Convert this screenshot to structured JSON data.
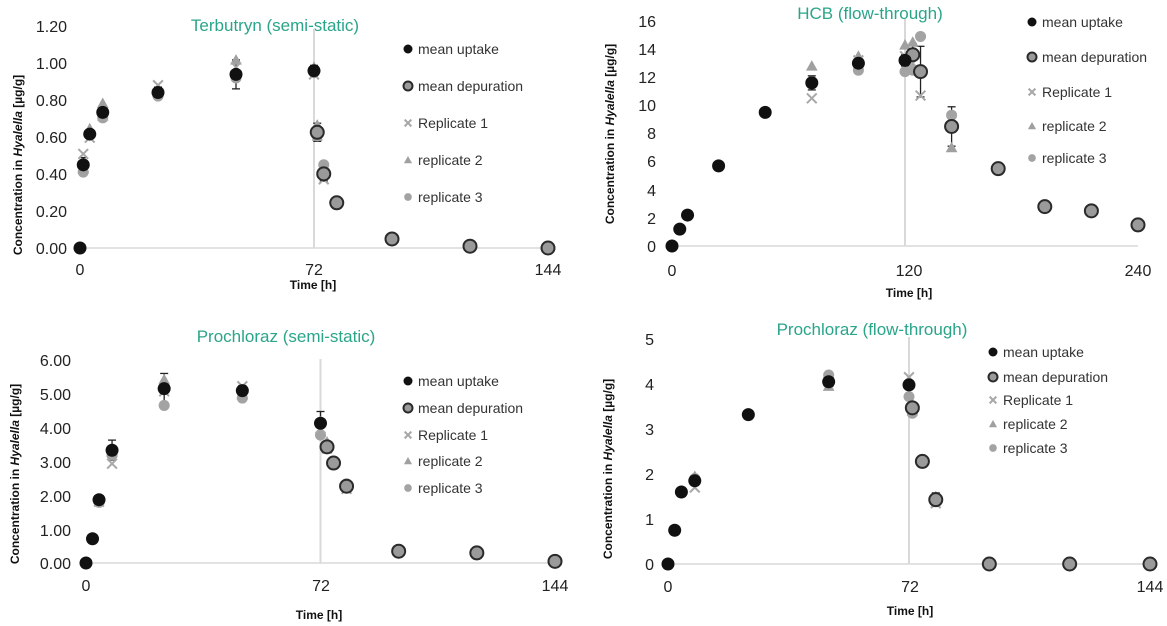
{
  "figure": {
    "panels": [
      {
        "title": "Terbutryn (semi-static)",
        "ylabel_pre": "Concentration in ",
        "ylabel_ital": "Hyalella",
        "ylabel_post": " [µg/g]",
        "xlabel": "Time  [h]",
        "yticks": [
          "0.00",
          "0.20",
          "0.40",
          "0.60",
          "0.80",
          "1.00",
          "1.20"
        ],
        "xticks": [
          "0",
          "72",
          "144"
        ],
        "legend": [
          "mean uptake",
          "mean depuration",
          "Replicate 1",
          "replicate 2",
          "replicate 3"
        ]
      },
      {
        "title": "HCB (flow-through)",
        "ylabel_pre": "Concentration in ",
        "ylabel_ital": "Hyalella",
        "ylabel_post": " [µg/g]",
        "xlabel": "Time  [h]",
        "yticks": [
          "0",
          "2",
          "4",
          "6",
          "8",
          "10",
          "12",
          "14",
          "16"
        ],
        "xticks": [
          "0",
          "120",
          "240"
        ],
        "legend": [
          "mean uptake",
          "mean depuration",
          "Replicate 1",
          "replicate 2",
          "replicate 3"
        ]
      },
      {
        "title": "Prochloraz (semi-static)",
        "ylabel_pre": "Concentration in ",
        "ylabel_ital": "Hyalella",
        "ylabel_post": " [µg/g]",
        "xlabel": "Time  [h]",
        "yticks": [
          "0.00",
          "1.00",
          "2.00",
          "3.00",
          "4.00",
          "5.00",
          "6.00"
        ],
        "xticks": [
          "0",
          "72",
          "144"
        ],
        "legend": [
          "mean uptake",
          "mean depuration",
          "Replicate 1",
          "replicate 2",
          "replicate 3"
        ]
      },
      {
        "title": "Prochloraz (flow-through)",
        "ylabel_pre": "Concentration in ",
        "ylabel_ital": "Hyalella",
        "ylabel_post": " [µg/g]",
        "xlabel": "Time  [h]",
        "yticks": [
          "0",
          "1",
          "2",
          "3",
          "4",
          "5"
        ],
        "xticks": [
          "0",
          "72",
          "144"
        ],
        "legend": [
          "mean uptake",
          "mean depuration",
          "Replicate 1",
          "replicate 2",
          "replicate 3"
        ]
      }
    ]
  },
  "colors": {
    "title": "#2aa58a",
    "uptake": "#111111",
    "depuration_fill": "#9a9a9a",
    "depuration_stroke": "#2a2a2a",
    "replicate_1": "#a8a8a8",
    "replicate_2": "#a0a0a0",
    "replicate_3": "#a3a3a3",
    "gridline": "#d9d9d9"
  },
  "chart_data": [
    {
      "type": "scatter",
      "title": "Terbutryn (semi-static)",
      "xlabel": "Time  [h]",
      "ylabel": "Concentration in Hyalella [µg/g]",
      "xlim": [
        0,
        144
      ],
      "ylim": [
        0,
        1.2
      ],
      "vertical_line_x": 72,
      "series": [
        {
          "name": "mean uptake",
          "x": [
            0,
            1,
            3,
            7,
            24,
            48,
            72
          ],
          "y": [
            0.0,
            0.46,
            0.63,
            0.75,
            0.86,
            0.96,
            0.98
          ],
          "err": [
            0,
            0.04,
            0.02,
            0.03,
            0.03,
            0.08,
            0.03
          ]
        },
        {
          "name": "mean depuration",
          "x": [
            73,
            75,
            79,
            96,
            120,
            144
          ],
          "y": [
            0.64,
            0.41,
            0.25,
            0.05,
            0.01,
            0.0
          ],
          "err": [
            0.05,
            0.04,
            0,
            0,
            0,
            0
          ]
        },
        {
          "name": "Replicate 1",
          "x": [
            1,
            3,
            7,
            24,
            48,
            72,
            73,
            75
          ],
          "y": [
            0.52,
            0.61,
            0.73,
            0.9,
            1.0,
            0.96,
            0.62,
            0.38
          ]
        },
        {
          "name": "replicate 2",
          "x": [
            1,
            3,
            7,
            24,
            48,
            72,
            73,
            75
          ],
          "y": [
            0.44,
            0.66,
            0.8,
            0.86,
            1.04,
            1.0,
            0.68,
            0.45
          ]
        },
        {
          "name": "replicate 3",
          "x": [
            1,
            3,
            7,
            24,
            48,
            72,
            73,
            75
          ],
          "y": [
            0.42,
            0.63,
            0.72,
            0.84,
            0.94,
            0.97,
            0.62,
            0.46
          ]
        }
      ]
    },
    {
      "type": "scatter",
      "title": "HCB (flow-through)",
      "xlabel": "Time  [h]",
      "ylabel": "Concentration in Hyalella [µg/g]",
      "xlim": [
        0,
        240
      ],
      "ylim": [
        0,
        16
      ],
      "vertical_line_x": 120,
      "series": [
        {
          "name": "mean uptake",
          "x": [
            0,
            4,
            8,
            24,
            48,
            72,
            96,
            120
          ],
          "y": [
            0.0,
            1.2,
            2.2,
            5.7,
            9.5,
            11.6,
            13.0,
            13.2
          ],
          "err": [
            0,
            0,
            0,
            0,
            0,
            0.5,
            0.4,
            0.4
          ]
        },
        {
          "name": "mean depuration",
          "x": [
            124,
            128,
            144,
            168,
            192,
            216,
            240
          ],
          "y": [
            13.6,
            12.4,
            8.5,
            5.5,
            2.8,
            2.5,
            1.5
          ],
          "err": [
            0.8,
            1.8,
            1.4,
            0,
            0,
            0,
            0
          ]
        },
        {
          "name": "Replicate 1",
          "x": [
            72,
            96,
            120,
            124,
            128,
            144
          ],
          "y": [
            10.5,
            13.2,
            13.5,
            13.0,
            10.7,
            9.0
          ]
        },
        {
          "name": "replicate 2",
          "x": [
            72,
            96,
            120,
            124,
            128,
            144
          ],
          "y": [
            12.8,
            13.5,
            14.3,
            14.5,
            12.5,
            7.0
          ]
        },
        {
          "name": "replicate 3",
          "x": [
            72,
            96,
            120,
            124,
            128,
            144
          ],
          "y": [
            11.7,
            12.5,
            12.4,
            12.5,
            14.9,
            9.3
          ]
        }
      ]
    },
    {
      "type": "scatter",
      "title": "Prochloraz (semi-static)",
      "xlabel": "Time  [h]",
      "ylabel": "Concentration in Hyalella [µg/g]",
      "xlim": [
        0,
        144
      ],
      "ylim": [
        0,
        6
      ],
      "vertical_line_x": 72,
      "series": [
        {
          "name": "mean uptake",
          "x": [
            0,
            2,
            4,
            8,
            24,
            48,
            72
          ],
          "y": [
            0.0,
            0.72,
            1.88,
            3.35,
            5.18,
            5.12,
            4.15
          ],
          "err": [
            0,
            0,
            0.1,
            0.3,
            0.45,
            0.15,
            0.35
          ]
        },
        {
          "name": "mean depuration",
          "x": [
            74,
            76,
            80,
            96,
            120,
            144
          ],
          "y": [
            3.45,
            2.97,
            2.28,
            0.35,
            0.3,
            0.05
          ],
          "err": [
            0,
            0,
            0.1,
            0,
            0.15,
            0
          ]
        },
        {
          "name": "Replicate 1",
          "x": [
            4,
            8,
            24,
            48,
            72,
            74,
            80
          ],
          "y": [
            1.82,
            2.95,
            5.1,
            5.25,
            4.0,
            3.4,
            2.2
          ]
        },
        {
          "name": "replicate 2",
          "x": [
            4,
            8,
            24,
            48,
            72,
            74,
            80
          ],
          "y": [
            1.9,
            3.3,
            5.45,
            5.0,
            4.2,
            3.6,
            2.3
          ]
        },
        {
          "name": "replicate 3",
          "x": [
            4,
            8,
            24,
            48,
            72,
            74,
            80
          ],
          "y": [
            1.8,
            3.2,
            4.68,
            4.9,
            3.8,
            3.4,
            2.35
          ]
        }
      ]
    },
    {
      "type": "scatter",
      "title": "Prochloraz (flow-through)",
      "xlabel": "Time  [h]",
      "ylabel": "Concentration in Hyalella [µg/g]",
      "xlim": [
        0,
        144
      ],
      "ylim": [
        0,
        5
      ],
      "vertical_line_x": 72,
      "series": [
        {
          "name": "mean uptake",
          "x": [
            0,
            2,
            4,
            8,
            24,
            48,
            72
          ],
          "y": [
            0.0,
            0.75,
            1.6,
            1.85,
            3.32,
            4.05,
            3.98
          ],
          "err": [
            0,
            0.05,
            0,
            0.1,
            0,
            0.1,
            0.1
          ]
        },
        {
          "name": "mean depuration",
          "x": [
            73,
            76,
            80,
            96,
            120,
            144
          ],
          "y": [
            3.47,
            2.28,
            1.43,
            0.0,
            0.0,
            0.0
          ],
          "err": [
            0.1,
            0,
            0.15,
            0,
            0,
            0
          ]
        },
        {
          "name": "Replicate 1",
          "x": [
            8,
            48,
            72,
            73,
            80
          ],
          "y": [
            1.7,
            4.05,
            4.15,
            3.4,
            1.35
          ]
        },
        {
          "name": "replicate 2",
          "x": [
            8,
            48,
            72,
            73,
            80
          ],
          "y": [
            1.95,
            3.95,
            4.0,
            3.55,
            1.5
          ]
        },
        {
          "name": "replicate 3",
          "x": [
            8,
            48,
            72,
            73,
            80
          ],
          "y": [
            1.9,
            4.2,
            3.72,
            3.35,
            1.45
          ]
        }
      ]
    }
  ]
}
